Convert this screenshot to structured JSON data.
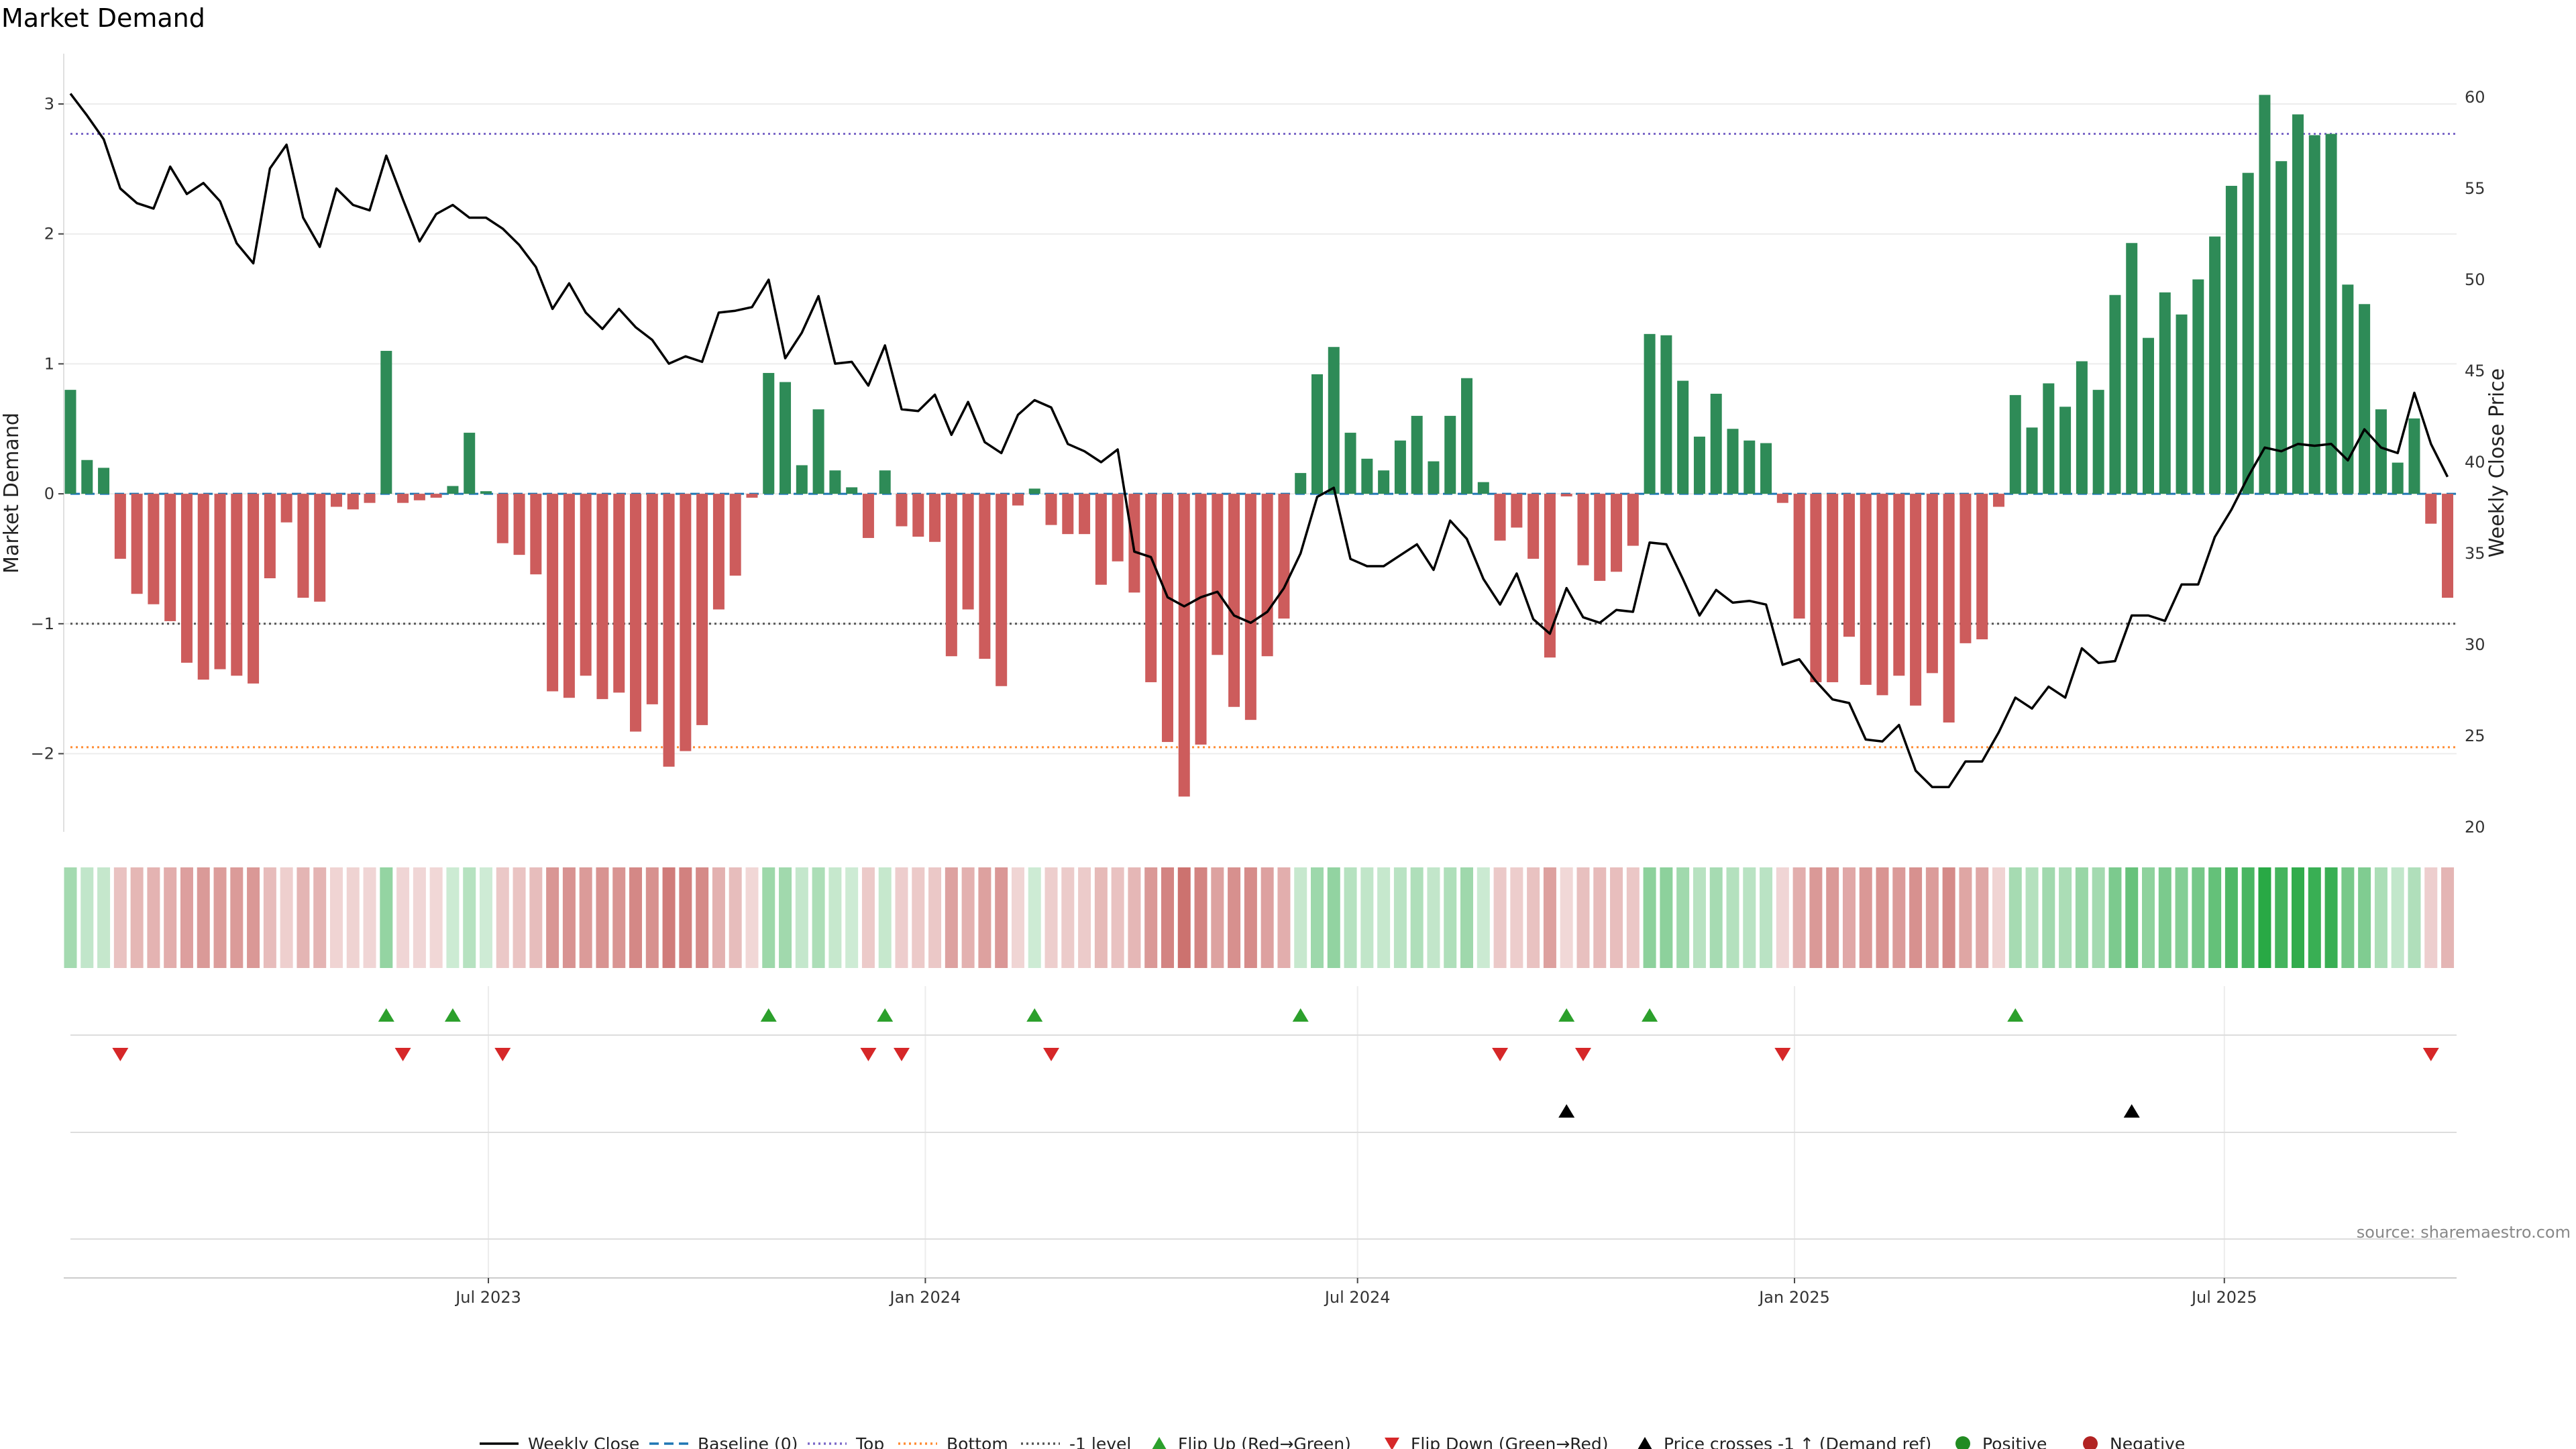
{
  "chart_data": {
    "type": "bar",
    "title": "Market Demand",
    "ylabel": "Market Demand",
    "y2label": "Weekly Close Price",
    "ylim": [
      -2.6,
      3.3
    ],
    "y2lim": [
      19.5,
      63.5
    ],
    "yticks": [
      3,
      2,
      1,
      0,
      -1,
      -2
    ],
    "ytick_labels": [
      "3",
      "2",
      "1",
      "0",
      "−1",
      "−2"
    ],
    "y2ticks": [
      60,
      55,
      50,
      45,
      40,
      35,
      30,
      25,
      20
    ],
    "date_range": [
      "2023-01-06",
      "2025-11-21"
    ],
    "x_ticks": [
      {
        "date": "2023-07-01",
        "label": "Jul 2023"
      },
      {
        "date": "2024-01-01",
        "label": "Jan 2024"
      },
      {
        "date": "2024-07-01",
        "label": "Jul 2024"
      },
      {
        "date": "2025-01-01",
        "label": "Jan 2025"
      },
      {
        "date": "2025-07-01",
        "label": "Jul 2025"
      }
    ],
    "reference_lines": {
      "top": 2.77,
      "bottom": -1.95,
      "minus_one": -1,
      "baseline": 0
    },
    "colors": {
      "positive": "#2e8b57",
      "negative": "#cd5c5c",
      "price": "#000000",
      "top": "#7b68c8",
      "bottom": "#ff8c33",
      "minus_one": "#555555",
      "baseline": "#1f77b4",
      "flip_up": "#2ca02c",
      "flip_down": "#d62728",
      "cross": "#000000"
    },
    "demand": [
      0.8,
      0.26,
      0.2,
      -0.5,
      -0.77,
      -0.85,
      -0.98,
      -1.3,
      -1.43,
      -1.35,
      -1.4,
      -1.46,
      -0.65,
      -0.22,
      -0.8,
      -0.83,
      -0.1,
      -0.12,
      -0.07,
      1.1,
      -0.07,
      -0.05,
      -0.03,
      0.06,
      0.47,
      0.02,
      -0.38,
      -0.47,
      -0.62,
      -1.52,
      -1.57,
      -1.4,
      -1.58,
      -1.53,
      -1.83,
      -1.62,
      -2.1,
      -1.98,
      -1.78,
      -0.89,
      -0.63,
      -0.03,
      0.93,
      0.86,
      0.22,
      0.65,
      0.18,
      0.05,
      -0.34,
      0.18,
      -0.25,
      -0.33,
      -0.37,
      -1.25,
      -0.89,
      -1.27,
      -1.48,
      -0.09,
      0.04,
      -0.24,
      -0.31,
      -0.31,
      -0.7,
      -0.52,
      -0.76,
      -1.45,
      -1.91,
      -2.33,
      -1.93,
      -1.24,
      -1.64,
      -1.74,
      -1.25,
      -0.96,
      0.16,
      0.92,
      1.13,
      0.47,
      0.27,
      0.18,
      0.41,
      0.6,
      0.25,
      0.6,
      0.89,
      0.09,
      -0.36,
      -0.26,
      -0.5,
      -1.26,
      -0.02,
      -0.55,
      -0.67,
      -0.6,
      -0.4,
      1.23,
      1.22,
      0.87,
      0.44,
      0.77,
      0.5,
      0.41,
      0.39,
      -0.07,
      -0.96,
      -1.45,
      -1.45,
      -1.1,
      -1.47,
      -1.55,
      -1.4,
      -1.63,
      -1.38,
      -1.76,
      -1.15,
      -1.12,
      -0.1,
      0.76,
      0.51,
      0.85,
      0.67,
      1.02,
      0.8,
      1.53,
      1.93,
      1.2,
      1.55,
      1.38,
      1.65,
      1.98,
      2.37,
      2.47,
      3.07,
      2.56,
      2.92,
      2.76,
      2.77,
      1.61,
      1.46,
      0.65,
      0.24,
      0.58,
      -0.23,
      -0.8
    ],
    "price": [
      60.2,
      59,
      57.7,
      55,
      54.2,
      53.9,
      56.2,
      54.7,
      55.3,
      54.3,
      52,
      50.9,
      56.1,
      57.4,
      53.4,
      51.8,
      55,
      54.1,
      53.8,
      56.8,
      54.4,
      52.1,
      53.6,
      54.1,
      53.4,
      53.4,
      52.8,
      51.9,
      50.7,
      48.4,
      49.8,
      48.2,
      47.3,
      48.4,
      47.4,
      46.7,
      45.4,
      45.8,
      45.5,
      48.2,
      48.3,
      48.5,
      50,
      45.7,
      47.1,
      49.1,
      45.4,
      45.5,
      44.2,
      46.4,
      42.9,
      42.8,
      43.7,
      41.5,
      43.3,
      41.1,
      40.5,
      42.6,
      43.4,
      43,
      41,
      40.6,
      40,
      40.7,
      35.1,
      34.8,
      32.6,
      32.1,
      32.6,
      32.9,
      31.6,
      31.2,
      31.8,
      33.1,
      35,
      38.1,
      38.6,
      34.7,
      34.3,
      34.3,
      34.9,
      35.5,
      34.1,
      36.8,
      35.8,
      33.6,
      32.2,
      33.9,
      31.4,
      30.6,
      33.1,
      31.5,
      31.2,
      31.9,
      31.8,
      35.6,
      35.5,
      33.6,
      31.6,
      33,
      32.3,
      32.4,
      32.2,
      28.9,
      29.2,
      28,
      27,
      26.8,
      24.8,
      24.7,
      25.6,
      23.1,
      22.2,
      22.2,
      23.6,
      23.6,
      25.2,
      27.1,
      26.5,
      27.7,
      27.1,
      29.8,
      29,
      29.1,
      31.6,
      31.6,
      31.3,
      33.3,
      33.3,
      35.9,
      37.4,
      39.2,
      40.8,
      40.6,
      41,
      40.9,
      41,
      40.1,
      41.8,
      40.8,
      40.5,
      43.8,
      41,
      39.2
    ],
    "flip_up": [
      19,
      23,
      42,
      49,
      58,
      74,
      90,
      95,
      117
    ],
    "flip_down": [
      3,
      20,
      26,
      48,
      50,
      59,
      86,
      91,
      103,
      142
    ],
    "price_cross": [
      90,
      124
    ],
    "legend": [
      "Weekly Close",
      "Baseline (0)",
      "Top",
      "Bottom",
      "-1 level",
      "Flip Up (Red→Green)",
      "Flip Down (Green→Red)",
      "Price crosses -1 ↑ (Demand ref)",
      "Positive",
      "Negative"
    ],
    "source": "source: sharemaestro.com"
  }
}
